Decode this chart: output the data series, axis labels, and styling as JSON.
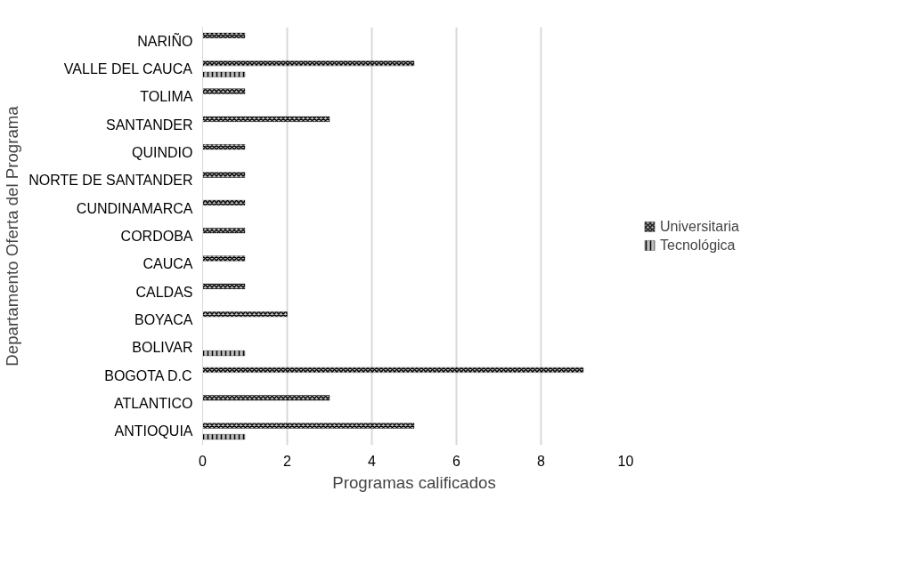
{
  "chart_data": {
    "type": "bar",
    "orientation": "horizontal",
    "categories": [
      "NARIÑO",
      "VALLE DEL CAUCA",
      "TOLIMA",
      "SANTANDER",
      "QUINDIO",
      "NORTE DE SANTANDER",
      "CUNDINAMARCA",
      "CORDOBA",
      "CAUCA",
      "CALDAS",
      "BOYACA",
      "BOLIVAR",
      "BOGOTA D.C",
      "ATLANTICO",
      "ANTIOQUIA"
    ],
    "series": [
      {
        "name": "Universitaria",
        "color": "#000000",
        "values": [
          1,
          5,
          1,
          3,
          1,
          1,
          1,
          1,
          1,
          1,
          2,
          null,
          9,
          3,
          5
        ]
      },
      {
        "name": "Tecnológica",
        "color": "#000000",
        "values": [
          null,
          1,
          null,
          null,
          null,
          null,
          null,
          null,
          null,
          null,
          null,
          1,
          null,
          null,
          1
        ]
      }
    ],
    "xlabel": "Programas calificados",
    "ylabel": "Departamento Oferta del Programa",
    "xlim": [
      0,
      10
    ],
    "xticks": [
      0,
      2,
      4,
      6,
      8,
      10
    ],
    "grid": "x",
    "legend": "right"
  }
}
